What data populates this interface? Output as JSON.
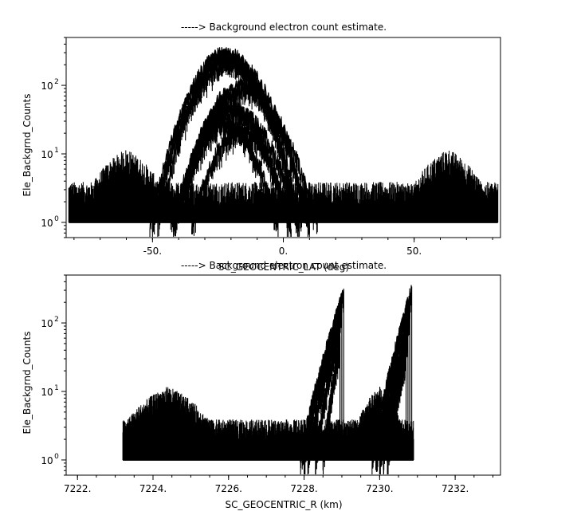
{
  "chart_data": [
    {
      "type": "line",
      "title": "-----> Background electron count estimate.",
      "xlabel": "SC_GEOCENTRIC_LAT (deg)",
      "ylabel": "Ele_Backgrnd_Counts",
      "xlim": [
        -83,
        83
      ],
      "ylim": [
        0.6,
        500
      ],
      "yscale": "log",
      "x_ticks": [
        -50,
        0,
        50
      ],
      "x_tick_labels": [
        "-50.",
        "0.",
        "50."
      ],
      "y_ticks": [
        1,
        10,
        100
      ],
      "grid": false,
      "series_color": "#000000",
      "noise_floor": {
        "x_range": [
          -82,
          82
        ],
        "baseline": 1,
        "typical_high": 3,
        "description": "dense spiky noise"
      },
      "noise_bumps": [
        {
          "x_range": [
            -82,
            -48
          ],
          "peak_x": -60,
          "peak": 12
        },
        {
          "x_range": [
            48,
            82
          ],
          "peak_x": 63,
          "peak": 12
        }
      ],
      "arc_envelopes": [
        {
          "center_x": -22,
          "peak": 320,
          "half_width": 28
        },
        {
          "center_x": -22,
          "peak": 290,
          "half_width": 29
        },
        {
          "center_x": -21,
          "peak": 270,
          "half_width": 27
        },
        {
          "center_x": -20,
          "peak": 250,
          "half_width": 30
        },
        {
          "center_x": -16,
          "peak": 110,
          "half_width": 26
        },
        {
          "center_x": -15,
          "peak": 95,
          "half_width": 28
        },
        {
          "center_x": -20,
          "peak": 55,
          "half_width": 22
        },
        {
          "center_x": -18,
          "peak": 45,
          "half_width": 24
        },
        {
          "center_x": -22,
          "peak": 30,
          "half_width": 20
        },
        {
          "center_x": -16,
          "peak": 25,
          "half_width": 19
        }
      ]
    },
    {
      "type": "line",
      "title": "-----> Background electron count estimate.",
      "xlabel": "SC_GEOCENTRIC_R (km)",
      "ylabel": "Ele_Backgrnd_Counts",
      "xlim": [
        7221.7,
        7233.2
      ],
      "ylim": [
        0.6,
        500
      ],
      "yscale": "log",
      "x_ticks": [
        7222,
        7224,
        7226,
        7228,
        7230,
        7232
      ],
      "x_tick_labels": [
        "7222.",
        "7224.",
        "7226.",
        "7228.",
        "7230.",
        "7232."
      ],
      "y_ticks": [
        1,
        10,
        100
      ],
      "grid": false,
      "series_color": "#000000",
      "noise_floor": {
        "x_range": [
          7223.2,
          7230.9
        ],
        "baseline": 1,
        "typical_high": 3,
        "description": "dense spiky noise"
      },
      "noise_bumps": [
        {
          "x_range": [
            7223.2,
            7226.1
          ],
          "peak_x": 7224.4,
          "peak": 12
        },
        {
          "x_range": [
            7229.4,
            7230.9
          ],
          "peak_x": 7230.0,
          "peak": 12
        }
      ],
      "rising_branches": [
        {
          "x_range": [
            7227.9,
            7229.05
          ],
          "start": 1,
          "end": 310
        },
        {
          "x_range": [
            7228.0,
            7229.0
          ],
          "start": 1,
          "end": 250
        },
        {
          "x_range": [
            7228.1,
            7229.0
          ],
          "start": 1,
          "end": 180
        },
        {
          "x_range": [
            7228.3,
            7228.95
          ],
          "start": 1,
          "end": 110
        },
        {
          "x_range": [
            7228.5,
            7228.95
          ],
          "start": 1,
          "end": 60
        },
        {
          "x_range": [
            7229.8,
            7230.85
          ],
          "start": 1,
          "end": 340
        },
        {
          "x_range": [
            7229.9,
            7230.8
          ],
          "start": 1,
          "end": 240
        },
        {
          "x_range": [
            7230.0,
            7230.8
          ],
          "start": 1,
          "end": 150
        },
        {
          "x_range": [
            7230.1,
            7230.75
          ],
          "start": 1,
          "end": 90
        },
        {
          "x_range": [
            7230.2,
            7230.7
          ],
          "start": 1,
          "end": 40
        }
      ]
    }
  ]
}
